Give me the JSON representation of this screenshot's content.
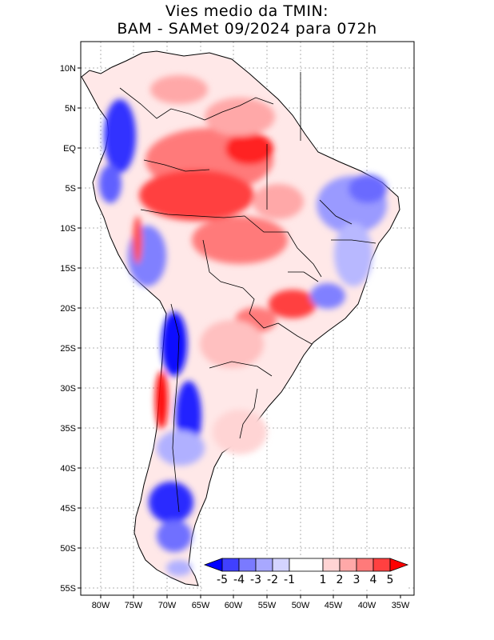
{
  "title": {
    "line1": "Vies medio da TMIN:",
    "line2": "BAM - SAMet 09/2024  para 072h"
  },
  "axes": {
    "lon_labels": [
      "80W",
      "75W",
      "70W",
      "65W",
      "60W",
      "55W",
      "50W",
      "45W",
      "40W",
      "35W"
    ],
    "lat_labels": [
      "10N",
      "5N",
      "EQ",
      "5S",
      "10S",
      "15S",
      "20S",
      "25S",
      "30S",
      "35S",
      "40S",
      "45S",
      "50S",
      "55S"
    ]
  },
  "colorbar": {
    "labels": [
      "-5",
      "-4",
      "-3",
      "-2",
      "-1",
      "1",
      "2",
      "3",
      "4",
      "5"
    ],
    "colors": [
      "#0000ff",
      "#4040ff",
      "#7a7aff",
      "#a8a8ff",
      "#d4d4ff",
      "#ffffff",
      "#ffd4d4",
      "#ffa8a8",
      "#ff7a7a",
      "#ff4040",
      "#ff0000"
    ]
  },
  "icons": {
    "map": "south-america-map",
    "left_arrow": "colorbar-left-arrow",
    "right_arrow": "colorbar-right-arrow"
  }
}
